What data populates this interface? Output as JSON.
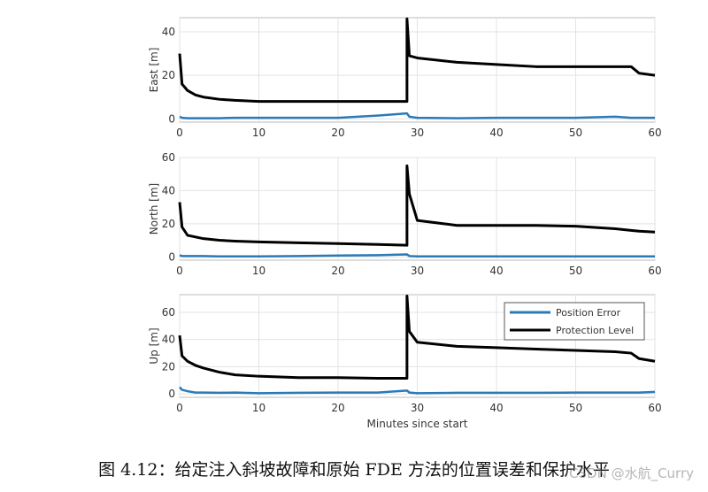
{
  "chart_data": [
    {
      "type": "line",
      "ylabel": "East [m]",
      "x": [
        0,
        0.3,
        1,
        2,
        3,
        5,
        7,
        10,
        15,
        20,
        25,
        28.7,
        28.7,
        29,
        30,
        35,
        40,
        45,
        50,
        55,
        57,
        58,
        60
      ],
      "series": [
        {
          "color": "#2a7ab8",
          "values": [
            1,
            0.5,
            0.3,
            0.3,
            0.3,
            0.3,
            0.5,
            0.5,
            0.5,
            0.5,
            1.5,
            2.5,
            2.5,
            1,
            0.5,
            0.3,
            0.5,
            0.5,
            0.5,
            1,
            0.5,
            0.5,
            0.5
          ]
        },
        {
          "color": "#000000",
          "values": [
            30,
            16,
            13,
            11,
            10,
            9,
            8.5,
            8,
            8,
            8,
            8,
            8,
            46,
            29,
            28,
            26,
            25,
            24,
            24,
            24,
            24,
            21,
            20
          ]
        }
      ],
      "xlim": [
        0,
        60
      ],
      "xticks": [
        0,
        10,
        20,
        30,
        40,
        50,
        60
      ],
      "ylim": [
        -1.5,
        46.5
      ],
      "yticks": [
        0,
        20,
        40
      ],
      "grid": true
    },
    {
      "type": "line",
      "ylabel": "North [m]",
      "x": [
        0,
        0.3,
        1,
        2,
        3,
        5,
        7,
        10,
        15,
        20,
        25,
        28.7,
        28.7,
        29,
        30,
        35,
        40,
        45,
        50,
        55,
        57,
        58,
        60
      ],
      "series": [
        {
          "color": "#2a7ab8",
          "values": [
            1,
            0.5,
            0.5,
            0.5,
            0.5,
            0.3,
            0.3,
            0.3,
            0.5,
            0.8,
            1,
            1.5,
            1.5,
            0.5,
            0.3,
            0.3,
            0.3,
            0.3,
            0.3,
            0.3,
            0.3,
            0.3,
            0.3
          ]
        },
        {
          "color": "#000000",
          "values": [
            33,
            18,
            13,
            12,
            11,
            10,
            9.5,
            9,
            8.5,
            8,
            7.5,
            7,
            55,
            38,
            22,
            19,
            19,
            19,
            18.5,
            17,
            16,
            15.5,
            15
          ]
        }
      ],
      "xlim": [
        0,
        60
      ],
      "xticks": [
        0,
        10,
        20,
        30,
        40,
        50,
        60
      ],
      "ylim": [
        -2,
        60
      ],
      "yticks": [
        0,
        20,
        40,
        60
      ],
      "grid": true
    },
    {
      "type": "line",
      "ylabel": "Up [m]",
      "xlabel": "Minutes since start",
      "x": [
        0,
        0.3,
        1,
        2,
        3,
        5,
        7,
        10,
        15,
        20,
        25,
        28.7,
        28.7,
        29,
        30,
        35,
        40,
        45,
        50,
        55,
        57,
        58,
        60
      ],
      "series": [
        {
          "name": "Position Error",
          "color": "#2a7ab8",
          "values": [
            5,
            3,
            2,
            1,
            1,
            0.8,
            1,
            0.5,
            0.8,
            1,
            1,
            2.5,
            2.5,
            1,
            0.5,
            0.8,
            0.8,
            0.8,
            1,
            1,
            1,
            1,
            1.5
          ]
        },
        {
          "name": "Protection Level",
          "color": "#000000",
          "values": [
            43,
            28,
            24,
            21,
            19,
            16,
            14,
            13,
            12,
            12,
            11.5,
            11.5,
            72,
            46,
            38,
            35,
            34,
            33,
            32,
            31,
            30,
            26,
            24
          ]
        }
      ],
      "xlim": [
        0,
        60
      ],
      "xticks": [
        0,
        10,
        20,
        30,
        40,
        50,
        60
      ],
      "ylim": [
        -2.5,
        73
      ],
      "yticks": [
        0,
        20,
        40,
        60
      ],
      "grid": true,
      "legend": "upper right"
    }
  ],
  "caption": "图 4.12：给定注入斜坡故障和原始 FDE 方法的位置误差和保护水平",
  "watermark": "CSDN @水航_Curry"
}
